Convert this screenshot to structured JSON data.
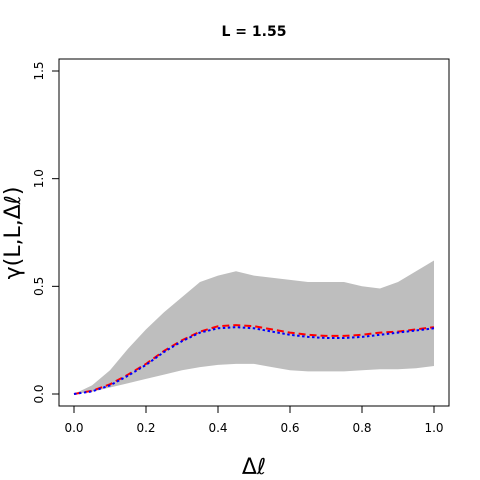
{
  "chart_data": {
    "type": "line",
    "title": "L = 1.55",
    "xlabel": "Δℓ",
    "ylabel": "γ(L,L,Δℓ)",
    "xlim": [
      0,
      1
    ],
    "ylim": [
      0,
      1.55
    ],
    "xticks": [
      "0.0",
      "0.2",
      "0.4",
      "0.6",
      "0.8",
      "1.0"
    ],
    "yticks": [
      "0.0",
      "0.5",
      "1.0",
      "1.5"
    ],
    "grid": false,
    "band": {
      "color": "#bebebe",
      "x": [
        0.0,
        0.05,
        0.1,
        0.15,
        0.2,
        0.25,
        0.3,
        0.35,
        0.4,
        0.45,
        0.5,
        0.55,
        0.6,
        0.65,
        0.7,
        0.75,
        0.8,
        0.85,
        0.9,
        0.95,
        1.0
      ],
      "upper": [
        0.0,
        0.04,
        0.11,
        0.21,
        0.3,
        0.38,
        0.45,
        0.52,
        0.55,
        0.57,
        0.55,
        0.54,
        0.53,
        0.52,
        0.52,
        0.52,
        0.5,
        0.49,
        0.52,
        0.57,
        0.62
      ],
      "lower": [
        0.0,
        0.01,
        0.03,
        0.05,
        0.07,
        0.09,
        0.11,
        0.125,
        0.135,
        0.14,
        0.14,
        0.125,
        0.11,
        0.105,
        0.105,
        0.105,
        0.11,
        0.115,
        0.115,
        0.12,
        0.13
      ]
    },
    "series": [
      {
        "color": "#ff0000",
        "style": "dashed",
        "x": [
          0.0,
          0.05,
          0.1,
          0.15,
          0.2,
          0.25,
          0.3,
          0.35,
          0.4,
          0.45,
          0.5,
          0.55,
          0.6,
          0.65,
          0.7,
          0.75,
          0.8,
          0.85,
          0.9,
          0.95,
          1.0
        ],
        "values": [
          0.0,
          0.015,
          0.045,
          0.09,
          0.14,
          0.2,
          0.25,
          0.29,
          0.315,
          0.32,
          0.315,
          0.3,
          0.285,
          0.275,
          0.27,
          0.27,
          0.275,
          0.285,
          0.29,
          0.3,
          0.31
        ]
      },
      {
        "color": "#0000ff",
        "style": "dotted",
        "x": [
          0.0,
          0.05,
          0.1,
          0.15,
          0.2,
          0.25,
          0.3,
          0.35,
          0.4,
          0.45,
          0.5,
          0.55,
          0.6,
          0.65,
          0.7,
          0.75,
          0.8,
          0.85,
          0.9,
          0.95,
          1.0
        ],
        "values": [
          0.0,
          0.012,
          0.04,
          0.085,
          0.135,
          0.195,
          0.245,
          0.285,
          0.305,
          0.31,
          0.305,
          0.29,
          0.275,
          0.265,
          0.26,
          0.26,
          0.265,
          0.275,
          0.285,
          0.295,
          0.305
        ]
      }
    ]
  }
}
